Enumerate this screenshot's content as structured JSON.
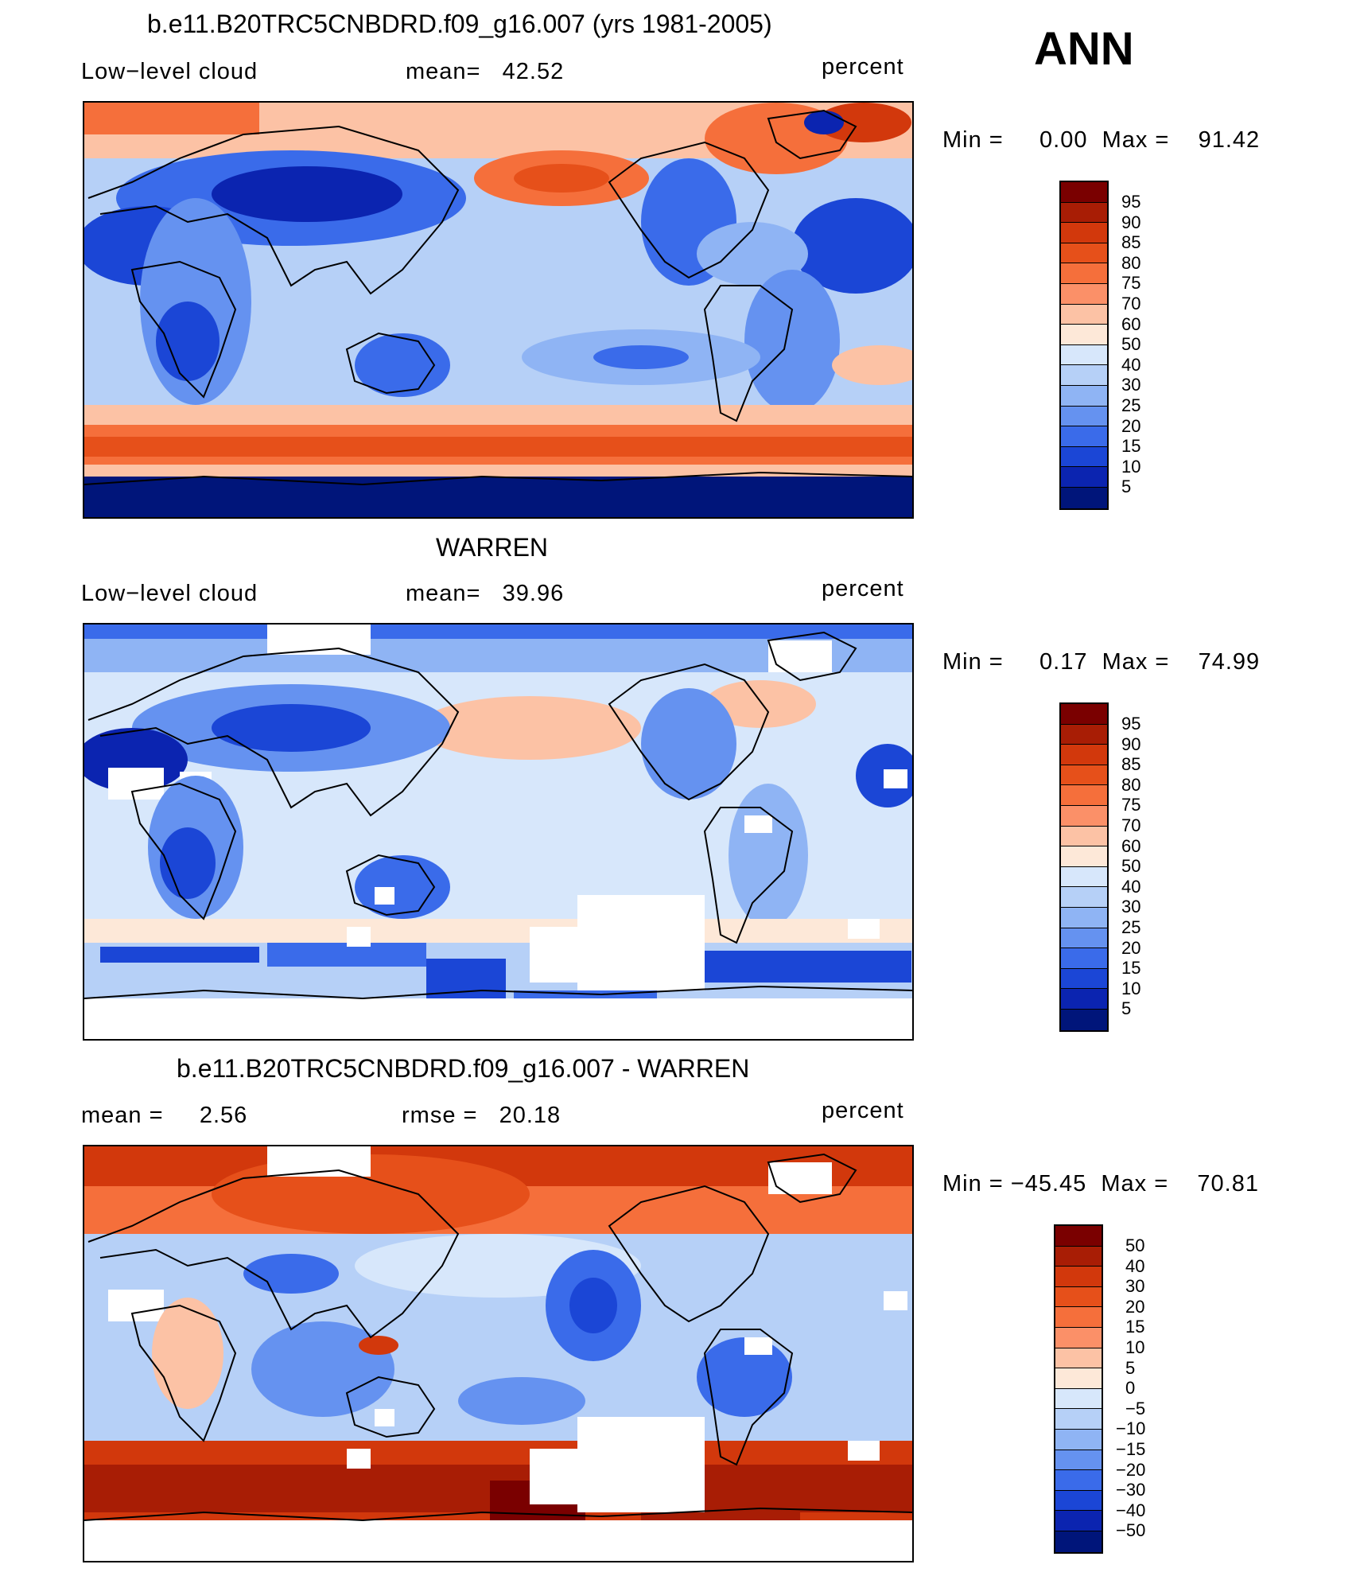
{
  "header": {
    "season": "ANN"
  },
  "panels": [
    {
      "title": "b.e11.B20TRC5CNBDRD.f09_g16.007 (yrs 1981-2005)",
      "left_label": "Low−level cloud",
      "mean_text": "mean=   42.52",
      "units": "percent",
      "minmax": "Min =     0.00  Max =    91.42",
      "colorbar": {
        "labels": [
          "95",
          "90",
          "85",
          "80",
          "75",
          "70",
          "60",
          "50",
          "40",
          "30",
          "25",
          "20",
          "15",
          "10",
          "5"
        ],
        "colors": [
          "#7a0000",
          "#a81d05",
          "#d2380c",
          "#e6501a",
          "#f56f3b",
          "#fb9068",
          "#fcc2a5",
          "#fde8d8",
          "#d7e7fb",
          "#b6d0f7",
          "#8fb4f4",
          "#6592f0",
          "#3a6bea",
          "#1b46d6",
          "#0b24b0",
          "#00157a"
        ]
      }
    },
    {
      "title": "WARREN",
      "left_label": "Low−level cloud",
      "mean_text": "mean=   39.96",
      "units": "percent",
      "minmax": "Min =     0.17  Max =    74.99",
      "colorbar": {
        "labels": [
          "95",
          "90",
          "85",
          "80",
          "75",
          "70",
          "60",
          "50",
          "40",
          "30",
          "25",
          "20",
          "15",
          "10",
          "5"
        ],
        "colors": [
          "#7a0000",
          "#a81d05",
          "#d2380c",
          "#e6501a",
          "#f56f3b",
          "#fb9068",
          "#fcc2a5",
          "#fde8d8",
          "#d7e7fb",
          "#b6d0f7",
          "#8fb4f4",
          "#6592f0",
          "#3a6bea",
          "#1b46d6",
          "#0b24b0",
          "#00157a"
        ]
      }
    },
    {
      "title": "b.e11.B20TRC5CNBDRD.f09_g16.007 - WARREN",
      "left_label": "mean =     2.56",
      "mean_text": "rmse =   20.18",
      "units": "percent",
      "minmax": "Min = −45.45  Max =    70.81",
      "colorbar": {
        "labels": [
          "50",
          "40",
          "30",
          "20",
          "15",
          "10",
          "5",
          "0",
          "−5",
          "−10",
          "−15",
          "−20",
          "−30",
          "−40",
          "−50"
        ],
        "colors": [
          "#7a0000",
          "#a81d05",
          "#d2380c",
          "#e6501a",
          "#f56f3b",
          "#fb9068",
          "#fcc2a5",
          "#fde8d8",
          "#d7e7fb",
          "#b6d0f7",
          "#8fb4f4",
          "#6592f0",
          "#3a6bea",
          "#1b46d6",
          "#0b24b0",
          "#00157a"
        ]
      }
    }
  ]
}
